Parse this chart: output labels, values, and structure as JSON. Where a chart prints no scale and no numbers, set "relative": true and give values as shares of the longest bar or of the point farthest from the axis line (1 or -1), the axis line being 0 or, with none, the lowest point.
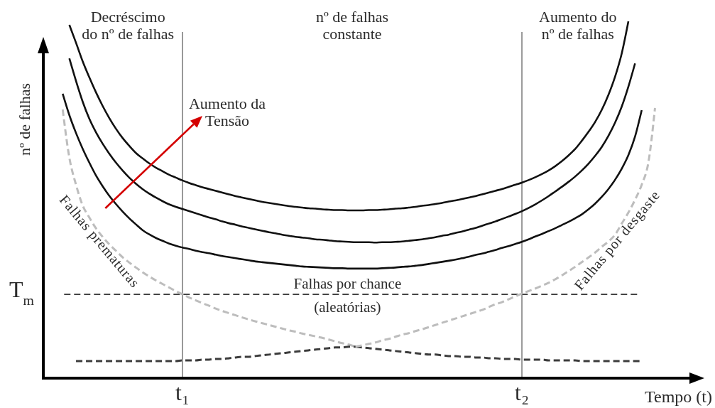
{
  "chart_data": {
    "type": "line",
    "relative": true,
    "xlabel": "Tempo (t)",
    "ylabel": "nº de falhas",
    "categories": [
      null,
      null,
      null,
      null,
      null,
      null,
      null,
      null,
      null,
      null,
      null,
      null,
      null,
      null,
      null,
      null,
      null,
      null,
      "t₁",
      null,
      null,
      null,
      null,
      null,
      null,
      null,
      null,
      null,
      null,
      null,
      null,
      null,
      null,
      null,
      null,
      null,
      null,
      null,
      null,
      null,
      null,
      null,
      null,
      null,
      null,
      null,
      null,
      null,
      null,
      null,
      null,
      null,
      null,
      null,
      null,
      null,
      null,
      null,
      null,
      null,
      null,
      null,
      null,
      null,
      null,
      null,
      null,
      null,
      null,
      "t₂",
      null,
      null,
      null,
      null,
      null,
      null,
      null,
      null,
      null,
      null,
      null,
      null,
      null,
      null,
      null,
      null,
      null,
      null,
      null,
      null
    ],
    "series": [
      {
        "name": "Falhas prematuras",
        "color": "#bdbdbd",
        "line_style": "dashed",
        "values": [
          0.753,
          0.618,
          0.542,
          0.484,
          0.45,
          0.42,
          0.396,
          0.375,
          0.357,
          0.339,
          0.324,
          0.31,
          0.297,
          0.285,
          0.274,
          0.264,
          0.254,
          0.244,
          0.235,
          0.226,
          0.218,
          0.21,
          0.203,
          0.195,
          0.188,
          0.182,
          0.176,
          0.17,
          0.164,
          0.159,
          0.154,
          0.149,
          0.144,
          0.139,
          0.134,
          0.13,
          0.125,
          0.121,
          0.117,
          0.113,
          0.108,
          0.103,
          0.098,
          0.094,
          0.088,
          null,
          null,
          null,
          null,
          null,
          null,
          null,
          null,
          null,
          null,
          null,
          null,
          null,
          null,
          null,
          null,
          null,
          null,
          null,
          null,
          null,
          null,
          null,
          null,
          null,
          null,
          null,
          null,
          null,
          null,
          null,
          null,
          null,
          null,
          null,
          null,
          null,
          null,
          null,
          null,
          null,
          null,
          null,
          null,
          null
        ]
      },
      {
        "color": "#3c3c3c",
        "line_style": "dashed",
        "values": [
          null,
          null,
          null,
          null,
          null,
          null,
          null,
          null,
          null,
          null,
          null,
          null,
          null,
          null,
          null,
          null,
          null,
          null,
          null,
          null,
          null,
          null,
          null,
          null,
          null,
          null,
          null,
          null,
          null,
          null,
          null,
          null,
          null,
          null,
          null,
          null,
          null,
          null,
          null,
          null,
          null,
          null,
          null,
          null,
          0.088,
          0.086,
          0.084,
          0.082,
          0.08,
          0.078,
          0.076,
          0.074,
          0.072,
          0.07,
          0.068,
          0.066,
          0.066,
          0.064,
          0.062,
          0.062,
          0.06,
          0.06,
          0.058,
          0.058,
          0.056,
          0.056,
          0.054,
          0.054,
          0.054,
          0.052,
          0.052,
          0.052,
          0.052,
          0.05,
          0.05,
          0.05,
          0.05,
          0.05,
          0.048,
          0.048,
          0.048,
          0.048,
          0.048,
          0.048,
          0.048,
          0.048,
          0.048,
          0.048,
          null,
          null
        ]
      },
      {
        "name": "Falhas por desgaste",
        "color": "#bdbdbd",
        "line_style": "dashed",
        "values": [
          null,
          null,
          null,
          null,
          null,
          null,
          null,
          null,
          null,
          null,
          null,
          null,
          null,
          null,
          null,
          null,
          null,
          null,
          null,
          null,
          null,
          null,
          null,
          null,
          null,
          null,
          null,
          null,
          null,
          null,
          null,
          null,
          null,
          null,
          null,
          null,
          null,
          null,
          null,
          null,
          null,
          null,
          null,
          null,
          0.088,
          0.092,
          0.096,
          0.1,
          0.106,
          0.11,
          0.116,
          0.122,
          0.126,
          0.132,
          0.137,
          0.143,
          0.149,
          0.155,
          0.161,
          0.167,
          0.173,
          0.179,
          0.185,
          0.191,
          0.199,
          0.207,
          0.213,
          0.221,
          0.229,
          0.237,
          0.244,
          0.251,
          0.259,
          0.267,
          0.277,
          0.288,
          0.3,
          0.312,
          0.325,
          0.338,
          0.352,
          0.368,
          0.383,
          0.402,
          0.433,
          0.464,
          0.5,
          0.542,
          0.604,
          0.757
        ]
      },
      {
        "color": "#3c3c3c",
        "line_style": "dashed",
        "values": [
          null,
          null,
          0.048,
          0.048,
          0.048,
          0.048,
          0.048,
          0.048,
          0.048,
          0.048,
          0.048,
          0.048,
          0.048,
          0.048,
          0.048,
          0.048,
          0.048,
          0.048,
          0.05,
          0.05,
          0.05,
          0.052,
          0.052,
          0.054,
          0.054,
          0.056,
          0.058,
          0.06,
          0.06,
          0.062,
          0.064,
          0.066,
          0.068,
          0.07,
          0.072,
          0.074,
          0.076,
          0.078,
          0.08,
          0.082,
          0.084,
          0.086,
          0.086,
          0.088,
          0.088,
          null,
          null,
          null,
          null,
          null,
          null,
          null,
          null,
          null,
          null,
          null,
          null,
          null,
          null,
          null,
          null,
          null,
          null,
          null,
          null,
          null,
          null,
          null,
          null,
          null,
          null,
          null,
          null,
          null,
          null,
          null,
          null,
          null,
          null,
          null,
          null,
          null,
          null,
          null,
          null,
          null,
          null,
          null,
          null,
          null
        ]
      },
      {
        "color": "#111111",
        "values": [
          null,
          0.99,
          0.94,
          0.888,
          0.843,
          0.801,
          0.763,
          0.729,
          0.699,
          0.673,
          0.651,
          0.631,
          0.616,
          0.602,
          0.59,
          0.58,
          0.57,
          0.562,
          0.554,
          0.547,
          0.541,
          0.535,
          0.53,
          0.525,
          0.52,
          0.515,
          0.51,
          0.506,
          0.502,
          0.498,
          0.494,
          0.491,
          0.488,
          0.485,
          0.482,
          0.48,
          0.478,
          0.476,
          0.475,
          0.473,
          0.472,
          0.471,
          0.471,
          0.47,
          0.47,
          0.47,
          0.471,
          0.471,
          0.472,
          0.473,
          0.475,
          0.476,
          0.478,
          0.48,
          0.483,
          0.485,
          0.488,
          0.491,
          0.495,
          0.498,
          0.502,
          0.506,
          0.51,
          0.515,
          0.52,
          0.525,
          0.53,
          0.536,
          0.542,
          0.548,
          0.555,
          0.563,
          0.572,
          0.582,
          0.594,
          0.608,
          0.624,
          0.642,
          0.665,
          0.69,
          0.718,
          0.752,
          0.794,
          0.845,
          0.91,
          1.0,
          null,
          null,
          null,
          null
        ]
      },
      {
        "color": "#111111",
        "values": [
          null,
          0.896,
          0.833,
          0.775,
          0.727,
          0.689,
          0.657,
          0.629,
          0.604,
          0.582,
          0.562,
          0.545,
          0.53,
          0.517,
          0.506,
          0.496,
          0.487,
          0.48,
          0.474,
          0.468,
          0.462,
          0.456,
          0.45,
          0.445,
          0.439,
          0.434,
          0.43,
          0.425,
          0.421,
          0.417,
          0.413,
          0.409,
          0.406,
          0.402,
          0.399,
          0.396,
          0.394,
          0.392,
          0.389,
          0.388,
          0.386,
          0.384,
          0.383,
          0.382,
          0.381,
          0.381,
          0.381,
          0.38,
          0.381,
          0.381,
          0.382,
          0.383,
          0.385,
          0.387,
          0.389,
          0.392,
          0.395,
          0.399,
          0.402,
          0.407,
          0.411,
          0.416,
          0.421,
          0.427,
          0.433,
          0.439,
          0.446,
          0.453,
          0.46,
          0.468,
          0.477,
          0.487,
          0.498,
          0.51,
          0.523,
          0.536,
          0.55,
          0.565,
          0.582,
          0.601,
          0.623,
          0.648,
          0.679,
          0.716,
          0.761,
          0.817,
          0.882,
          null,
          null,
          null
        ]
      },
      {
        "color": "#111111",
        "values": [
          0.797,
          0.737,
          0.687,
          0.643,
          0.604,
          0.568,
          0.538,
          0.511,
          0.488,
          0.467,
          0.448,
          0.431,
          0.415,
          0.403,
          0.393,
          0.385,
          0.377,
          0.371,
          0.366,
          0.362,
          0.357,
          0.353,
          0.35,
          0.346,
          0.342,
          0.339,
          0.336,
          0.333,
          0.33,
          0.327,
          0.325,
          0.323,
          0.321,
          0.319,
          0.317,
          0.315,
          0.313,
          0.312,
          0.311,
          0.31,
          0.309,
          0.308,
          0.308,
          0.307,
          0.307,
          0.307,
          0.307,
          0.307,
          0.308,
          0.309,
          0.31,
          0.312,
          0.313,
          0.315,
          0.317,
          0.32,
          0.323,
          0.326,
          0.329,
          0.332,
          0.336,
          0.34,
          0.345,
          0.349,
          0.354,
          0.359,
          0.365,
          0.37,
          0.376,
          0.382,
          0.389,
          0.397,
          0.404,
          0.412,
          0.42,
          0.429,
          0.438,
          0.448,
          0.459,
          0.473,
          0.489,
          0.508,
          0.53,
          0.556,
          0.587,
          0.625,
          0.677,
          0.751,
          null,
          null
        ]
      }
    ],
    "ref_lines": [
      {
        "axis": "x",
        "value": "t₁",
        "color": "#555555",
        "line_style": "solid"
      },
      {
        "axis": "x",
        "value": "t₂",
        "color": "#555555",
        "line_style": "solid"
      },
      {
        "axis": "y",
        "value": 0.235,
        "label": "T$_{m}$",
        "color": "#3a3a3a",
        "line_style": "dashed"
      }
    ],
    "annotations": [
      "Decréscimo\ndo nº de falhas",
      "nº de falhas\nconstante",
      "Aumento do\nnº de falhas",
      "Aumento da\nTensão",
      {
        "text": "Falhas por chance\n(aleatórias)",
        "y": 0.235
      }
    ]
  }
}
